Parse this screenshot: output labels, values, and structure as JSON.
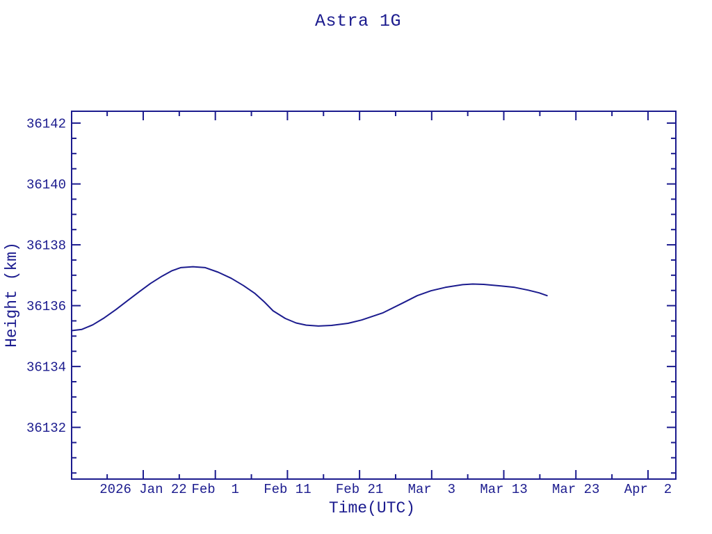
{
  "page": {
    "background_color": "#ffffff",
    "ink_color": "#1b1b8e"
  },
  "chart_data": {
    "type": "line",
    "title": "Astra 1G",
    "xlabel": "Time(UTC)",
    "ylabel": "Height (km)",
    "grid": false,
    "legend": null,
    "x_axis": {
      "unit": "days relative to 2026 Jan 22 00:00 UTC",
      "range_days": [
        -9.93,
        73.86
      ],
      "major_tick_days": [
        0,
        10,
        20,
        30,
        40,
        50,
        60,
        70
      ],
      "major_tick_labels": [
        "2026 Jan 22",
        "Feb  1",
        "Feb 11",
        "Feb 21",
        "Mar  3",
        "Mar 13",
        "Mar 23",
        "Apr  2"
      ],
      "minor_tick_step_days": 5
    },
    "y_axis": {
      "unit": "km",
      "range": [
        36130.3,
        36142.39
      ],
      "major_ticks": [
        36132,
        36134,
        36136,
        36138,
        36140,
        36142
      ],
      "major_tick_labels": [
        "36132",
        "36134",
        "36136",
        "36138",
        "36140",
        "36142"
      ],
      "minor_tick_step": 0.5
    },
    "series": [
      {
        "name": "Astra 1G height",
        "color": "#1b1b8e",
        "x_days": [
          -9.93,
          -8.5,
          -7.0,
          -5.4,
          -3.8,
          -2.2,
          -0.6,
          1.0,
          2.6,
          4.0,
          5.2,
          6.9,
          8.6,
          10.4,
          12.2,
          13.9,
          15.5,
          16.8,
          18.0,
          19.7,
          21.2,
          22.6,
          24.3,
          26.1,
          28.4,
          30.3,
          33.2,
          36.1,
          38.0,
          39.9,
          41.9,
          44.3,
          45.7,
          47.2,
          49.6,
          51.5,
          53.4,
          54.9,
          56.0
        ],
        "y_km": [
          36135.18,
          36135.22,
          36135.37,
          36135.6,
          36135.87,
          36136.16,
          36136.45,
          36136.73,
          36136.97,
          36137.15,
          36137.25,
          36137.28,
          36137.25,
          36137.1,
          36136.9,
          36136.66,
          36136.4,
          36136.12,
          36135.83,
          36135.58,
          36135.43,
          36135.36,
          36135.33,
          36135.35,
          36135.42,
          36135.53,
          36135.76,
          36136.1,
          36136.33,
          36136.49,
          36136.6,
          36136.69,
          36136.71,
          36136.7,
          36136.65,
          36136.6,
          36136.51,
          36136.42,
          36136.33
        ],
        "observations": {
          "start": {
            "date": "2026 Jan 12",
            "km": 36135.2
          },
          "first_peak": {
            "date": "2026 Jan 29",
            "km": 36137.3
          },
          "trough": {
            "date": "2026 Feb 15",
            "km": 36135.33
          },
          "second_peak": {
            "date": "2026 Mar 8",
            "km": 36136.7
          },
          "end": {
            "date": "2026 Mar 19",
            "km": 36136.33
          }
        }
      }
    ]
  }
}
